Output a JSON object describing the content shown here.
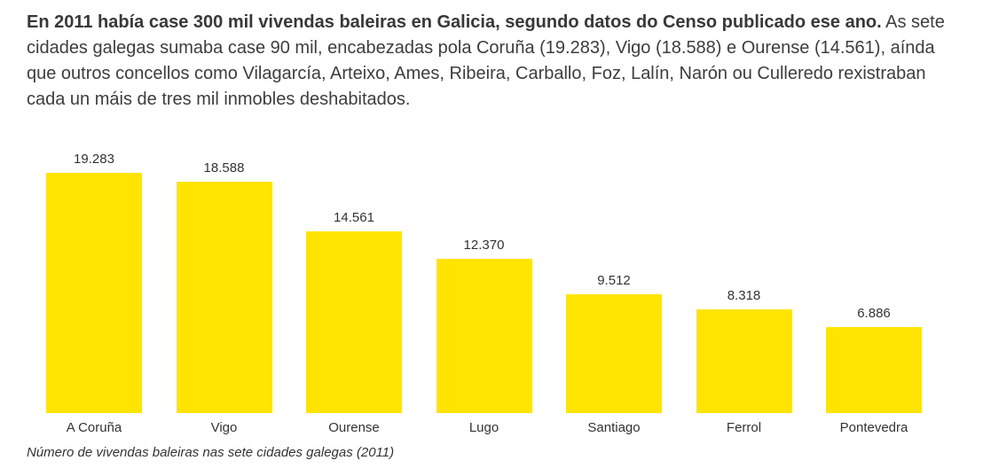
{
  "intro": {
    "bold": "En 2011 había case 300 mil vivendas baleiras en Galicia, segundo datos do Censo publicado ese ano.",
    "rest": " As sete cidades galegas sumaba case 90 mil, encabezadas pola Coruña (19.283), Vigo (18.588) e Ourense (14.561), aínda que outros concellos como Vilagarcía, Arteixo, Ames, Ribeira, Carballo, Foz, Lalín, Narón ou Culleredo rexistraban cada un máis de tres mil inmobles deshabitados."
  },
  "chart_data": {
    "type": "bar",
    "categories": [
      "A Coruña",
      "Vigo",
      "Ourense",
      "Lugo",
      "Santiago",
      "Ferrol",
      "Pontevedra"
    ],
    "values": [
      19283,
      18588,
      14561,
      12370,
      9512,
      8318,
      6886
    ],
    "value_labels": [
      "19.283",
      "18.588",
      "14.561",
      "12.370",
      "9.512",
      "8.318",
      "6.886"
    ],
    "title": "",
    "xlabel": "",
    "ylabel": "",
    "ylim": [
      0,
      19283
    ],
    "grid": false,
    "legend": false,
    "bar_color": "#ffe400",
    "label_color": "#333333",
    "caption": "Número de vivendas baleiras nas sete cidades galegas (2011)"
  }
}
